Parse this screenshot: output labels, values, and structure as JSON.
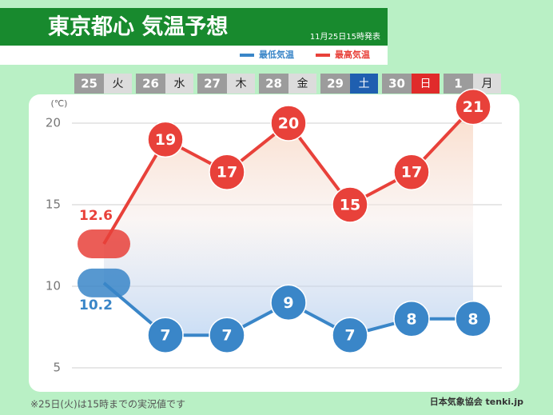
{
  "chart_data": {
    "type": "line",
    "title": "東京都心 気温予想",
    "issued": "11月25日15時発表",
    "y_unit": "(℃)",
    "categories": [
      "25",
      "26",
      "27",
      "28",
      "29",
      "30",
      "1"
    ],
    "weekdays": [
      "火",
      "水",
      "木",
      "金",
      "土",
      "日",
      "月"
    ],
    "weekday_colors": [
      null,
      null,
      null,
      null,
      "#1f5fb0",
      "#e02b2b",
      null
    ],
    "series": [
      {
        "name": "最低気温",
        "color": "#3a86c8",
        "values": [
          10.2,
          7,
          7,
          9,
          7,
          8,
          8
        ]
      },
      {
        "name": "最高気温",
        "color": "#e8413a",
        "values": [
          12.6,
          19,
          17,
          20,
          15,
          17,
          21
        ]
      }
    ],
    "ylim": [
      3.5,
      21.5
    ],
    "yticks": [
      5,
      10,
      15,
      20
    ],
    "grid": true,
    "footnote": "※25日(火)は15時までの実況値です",
    "credit": "日本気象協会 tenki.jp"
  }
}
